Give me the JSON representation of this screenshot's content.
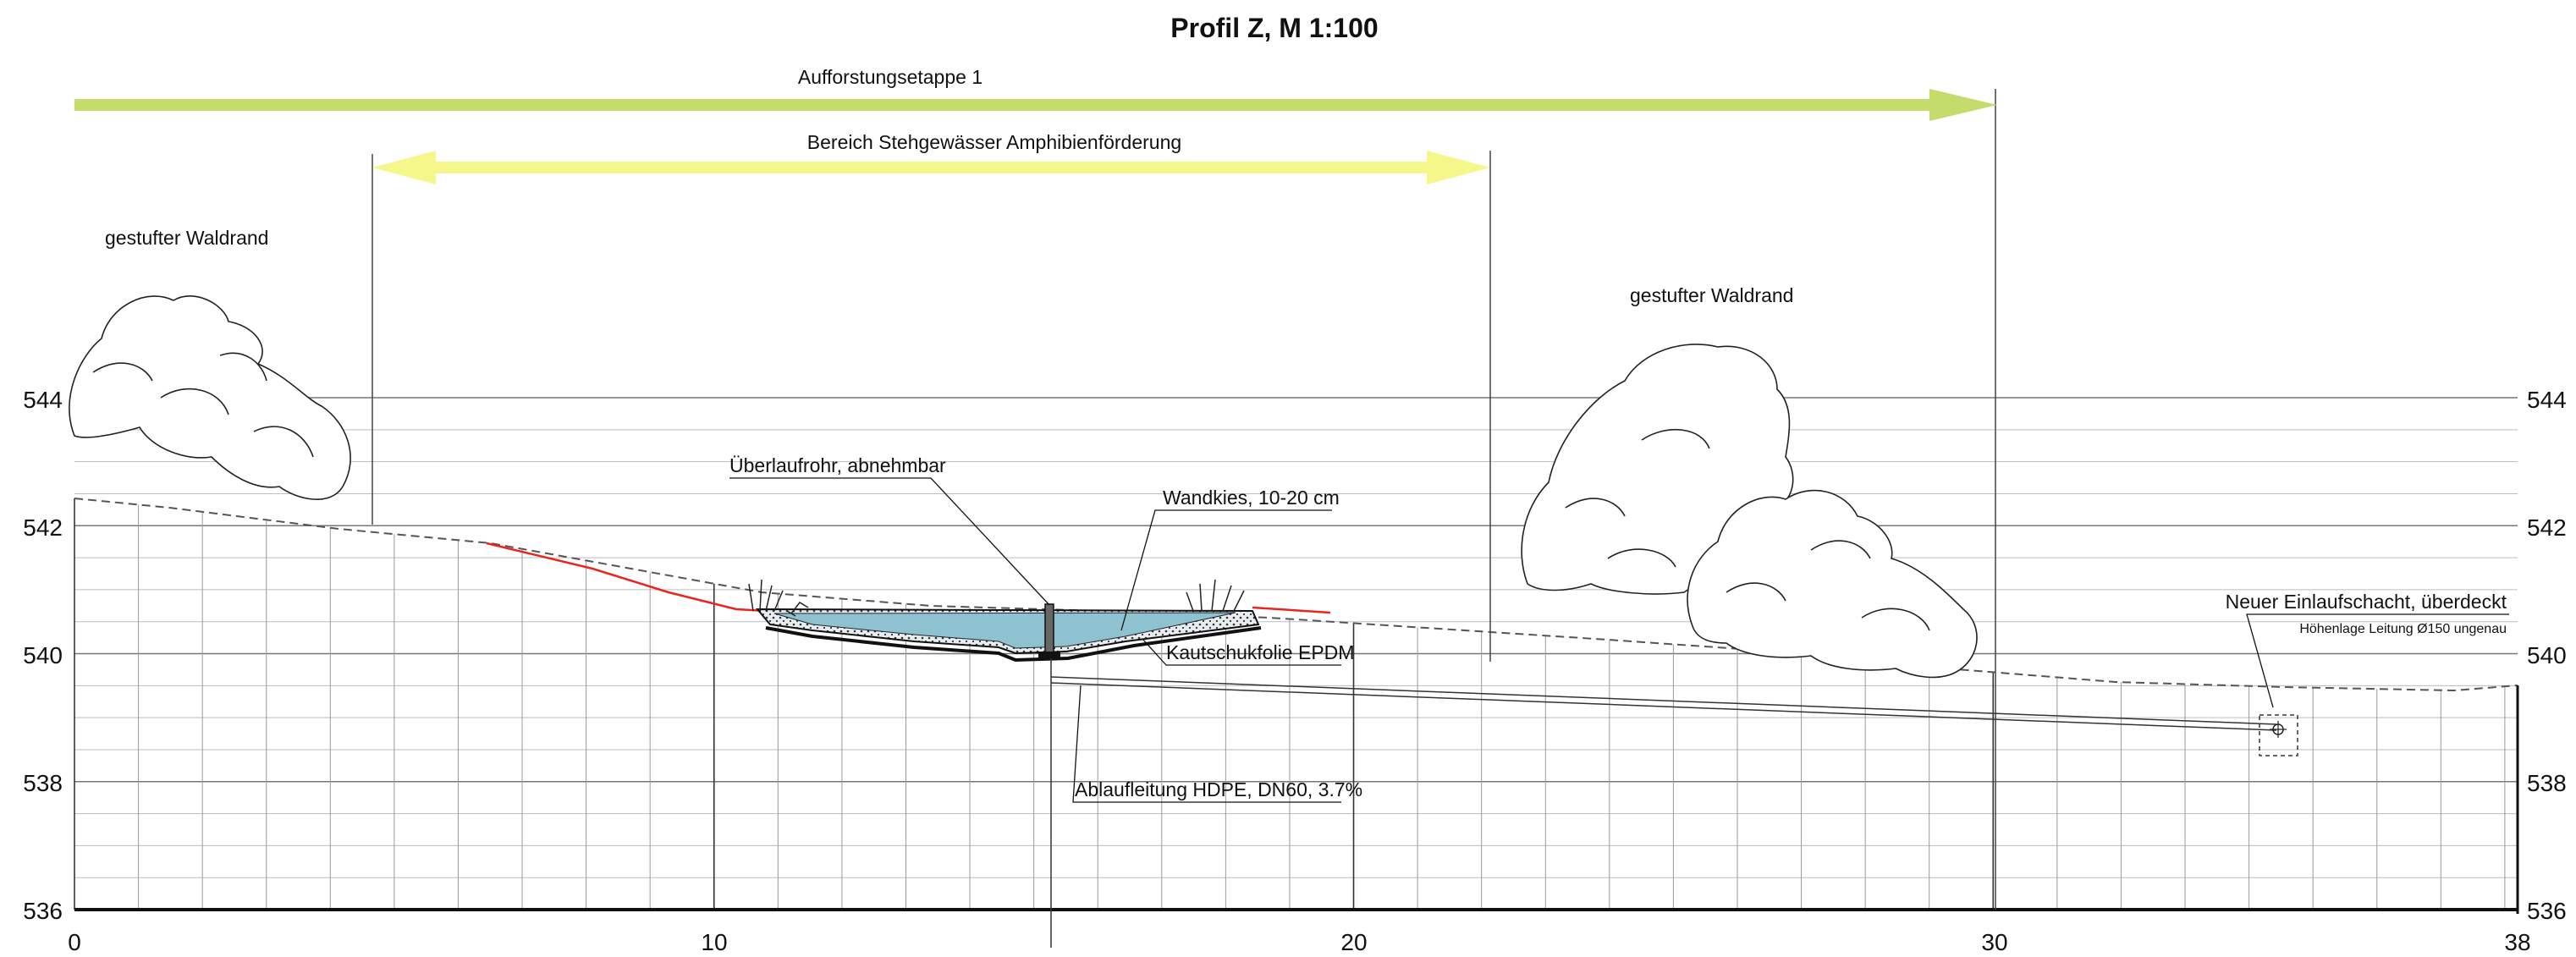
{
  "title": "Profil Z, M 1:100",
  "phases": {
    "afforestation": "Aufforstungsetappe 1",
    "pond_area": "Bereich Stehgewässer Amphibienförderung"
  },
  "vegetation": {
    "left": "gestufter Waldrand",
    "right": "gestufter Waldrand"
  },
  "annotations": {
    "overflow_pipe": "Überlaufrohr, abnehmbar",
    "wall_gravel": "Wandkies, 10-20 cm",
    "liner": "Kautschukfolie EPDM",
    "drain_pipe": "Ablaufleitung HDPE, DN60, 3.7%",
    "inlet_shaft": "Neuer Einlaufschacht, überdeckt",
    "inlet_note": "Höhenlage Leitung Ø150 ungenau"
  },
  "axes": {
    "x_ticks": [
      "0",
      "10",
      "20",
      "30",
      "38"
    ],
    "y_ticks_left": [
      "544",
      "542",
      "540",
      "538",
      "536"
    ],
    "y_ticks_right": [
      "544",
      "542",
      "540",
      "538",
      "536"
    ]
  },
  "colors": {
    "green_arrow": "#c3dc6b",
    "yellow_arrow": "#f6f78a",
    "water": "#8fc2d0",
    "new_terrain": "#e8261c",
    "grid": "#9a9a9a",
    "ink": "#111111"
  }
}
